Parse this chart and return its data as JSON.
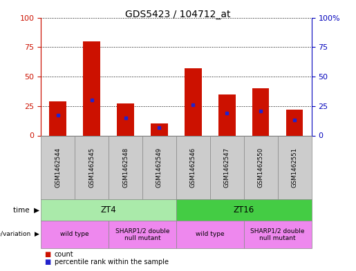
{
  "title": "GDS5423 / 104712_at",
  "samples": [
    "GSM1462544",
    "GSM1462545",
    "GSM1462548",
    "GSM1462549",
    "GSM1462546",
    "GSM1462547",
    "GSM1462550",
    "GSM1462551"
  ],
  "counts": [
    29,
    80,
    27,
    10,
    57,
    35,
    40,
    22
  ],
  "percentile_ranks": [
    17,
    30,
    15,
    7,
    26,
    19,
    21,
    13
  ],
  "ylim": [
    0,
    100
  ],
  "left_yticks": [
    0,
    25,
    50,
    75,
    100
  ],
  "right_ytick_vals": [
    0,
    25,
    50,
    75,
    100
  ],
  "right_ytick_labels": [
    "0",
    "25",
    "50",
    "75",
    "100%"
  ],
  "bar_color": "#cc1100",
  "marker_color": "#2222cc",
  "bg_color": "#cccccc",
  "plot_bg": "#ffffff",
  "time_groups": [
    {
      "label": "ZT4",
      "start": 0,
      "end": 4,
      "color": "#aaeaaa"
    },
    {
      "label": "ZT16",
      "start": 4,
      "end": 8,
      "color": "#44cc44"
    }
  ],
  "genotype_groups": [
    {
      "label": "wild type",
      "start": 0,
      "end": 2,
      "color": "#ee88ee"
    },
    {
      "label": "SHARP1/2 double\nnull mutant",
      "start": 2,
      "end": 4,
      "color": "#ee88ee"
    },
    {
      "label": "wild type",
      "start": 4,
      "end": 6,
      "color": "#ee88ee"
    },
    {
      "label": "SHARP1/2 double\nnull mutant",
      "start": 6,
      "end": 8,
      "color": "#ee88ee"
    }
  ],
  "legend_count_label": "count",
  "legend_percentile_label": "percentile rank within the sample",
  "bar_width": 0.5,
  "left_ylabel_color": "#cc1100",
  "right_ylabel_color": "#0000bb"
}
